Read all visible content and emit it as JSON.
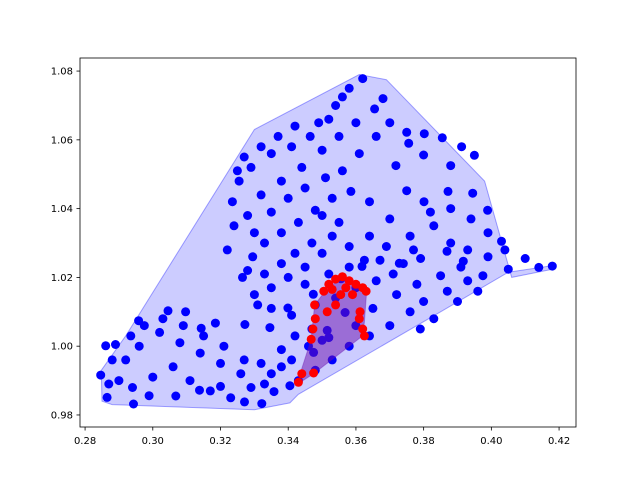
{
  "chart_data": {
    "type": "scatter",
    "title": "",
    "xlabel": "",
    "ylabel": "",
    "xlim": [
      0.2785,
      0.425
    ],
    "ylim": [
      0.9765,
      1.0838
    ],
    "x_ticks": [
      "0.28",
      "0.30",
      "0.32",
      "0.34",
      "0.36",
      "0.38",
      "0.40",
      "0.42"
    ],
    "x_tick_values": [
      0.28,
      0.3,
      0.32,
      0.34,
      0.36,
      0.38,
      0.4,
      0.42
    ],
    "y_ticks": [
      "0.98",
      "1.00",
      "1.02",
      "1.04",
      "1.06",
      "1.08"
    ],
    "y_tick_values": [
      0.98,
      1.0,
      1.02,
      1.04,
      1.06,
      1.08
    ],
    "grid": false,
    "legend": "none",
    "series": [
      {
        "color": "#0000ff",
        "hull_fill": "#0000ff",
        "hull_opacity": 0.2,
        "hull": [
          [
            0.285,
            0.984
          ],
          [
            0.288,
            0.983
          ],
          [
            0.33,
            0.9815
          ],
          [
            0.3405,
            0.9835
          ],
          [
            0.343,
            0.986
          ],
          [
            0.385,
            1.01
          ],
          [
            0.405,
            1.0215
          ],
          [
            0.4185,
            1.0235
          ],
          [
            0.4188,
            1.0225
          ],
          [
            0.406,
            1.02
          ],
          [
            0.398,
            1.048
          ],
          [
            0.369,
            1.0775
          ],
          [
            0.361,
            1.079
          ],
          [
            0.33,
            1.063
          ],
          [
            0.292,
            1.003
          ],
          [
            0.2848,
            0.993
          ]
        ],
        "points": [
          [
            0.3568,
            1.0098
          ],
          [
            0.3515,
            1.0046
          ],
          [
            0.35,
            1.0017
          ],
          [
            0.3475,
            0.9982
          ],
          [
            0.3405,
            0.9885
          ],
          [
            0.3358,
            0.9868
          ],
          [
            0.3322,
            0.9833
          ],
          [
            0.3271,
            0.9838
          ],
          [
            0.32,
            0.9883
          ],
          [
            0.3138,
            0.9872
          ],
          [
            0.3068,
            0.9855
          ],
          [
            0.2989,
            0.9856
          ],
          [
            0.2943,
            0.9832
          ],
          [
            0.2865,
            0.9851
          ],
          [
            0.2846,
            0.9916
          ],
          [
            0.2861,
            1.0001
          ],
          [
            0.289,
            1.0005
          ],
          [
            0.2958,
            1.0074
          ],
          [
            0.3045,
            1.0103
          ],
          [
            0.3097,
            1.01
          ],
          [
            0.3143,
            1.0052
          ],
          [
            0.3185,
            1.0067
          ],
          [
            0.3272,
            1.0063
          ],
          [
            0.3346,
            1.0054
          ],
          [
            0.3399,
            1.0111
          ],
          [
            0.3474,
            1.0151
          ],
          [
            0.3556,
            1.0196
          ],
          [
            0.3618,
            1.0232
          ],
          [
            0.3671,
            1.025
          ],
          [
            0.3728,
            1.0241
          ],
          [
            0.3791,
            1.0255
          ],
          [
            0.3869,
            1.0276
          ],
          [
            0.3917,
            1.0247
          ],
          [
            0.3975,
            1.0205
          ],
          [
            0.405,
            1.0224
          ],
          [
            0.414,
            1.0229
          ],
          [
            0.418,
            1.0233
          ],
          [
            0.41,
            1.0255
          ],
          [
            0.403,
            1.0305
          ],
          [
            0.3989,
            1.0395
          ],
          [
            0.3945,
            1.0445
          ],
          [
            0.3872,
            1.045
          ],
          [
            0.3801,
            1.042
          ],
          [
            0.375,
            1.0452
          ],
          [
            0.3718,
            1.0525
          ],
          [
            0.3756,
            1.059
          ],
          [
            0.3802,
            1.0618
          ],
          [
            0.3855,
            1.0606
          ],
          [
            0.3912,
            1.058
          ],
          [
            0.395,
            1.0555
          ],
          [
            0.388,
            1.0525
          ],
          [
            0.38,
            1.0556
          ],
          [
            0.375,
            1.0622
          ],
          [
            0.368,
            1.072
          ],
          [
            0.362,
            1.0778
          ],
          [
            0.356,
            1.0725
          ],
          [
            0.352,
            1.066
          ],
          [
            0.3465,
            1.061
          ],
          [
            0.341,
            1.058
          ],
          [
            0.335,
            1.056
          ],
          [
            0.329,
            1.052
          ],
          [
            0.3255,
            1.048
          ],
          [
            0.3235,
            1.042
          ],
          [
            0.324,
            1.035
          ],
          [
            0.322,
            1.028
          ],
          [
            0.3265,
            1.02
          ],
          [
            0.33,
            1.015
          ],
          [
            0.335,
            1.011
          ],
          [
            0.341,
            1.009
          ],
          [
            0.347,
            1.005
          ],
          [
            0.352,
            1.0025
          ],
          [
            0.36,
            1.006
          ],
          [
            0.365,
            1.011
          ],
          [
            0.372,
            1.015
          ],
          [
            0.378,
            1.018
          ],
          [
            0.385,
            1.0205
          ],
          [
            0.391,
            1.023
          ],
          [
            0.376,
            1.032
          ],
          [
            0.37,
            1.037
          ],
          [
            0.364,
            1.042
          ],
          [
            0.3585,
            1.045
          ],
          [
            0.353,
            1.043
          ],
          [
            0.348,
            1.0395
          ],
          [
            0.343,
            1.036
          ],
          [
            0.338,
            1.033
          ],
          [
            0.333,
            1.03
          ],
          [
            0.3295,
            1.026
          ],
          [
            0.328,
            1.022
          ],
          [
            0.333,
            1.021
          ],
          [
            0.338,
            1.024
          ],
          [
            0.342,
            1.027
          ],
          [
            0.347,
            1.03
          ],
          [
            0.353,
            1.032
          ],
          [
            0.358,
            1.029
          ],
          [
            0.3625,
            1.025
          ],
          [
            0.36,
            1.017
          ],
          [
            0.354,
            1.014
          ],
          [
            0.348,
            1.012
          ],
          [
            0.342,
            1.003
          ],
          [
            0.338,
            0.999
          ],
          [
            0.332,
            0.995
          ],
          [
            0.326,
            0.992
          ],
          [
            0.32,
            0.995
          ],
          [
            0.314,
            0.998
          ],
          [
            0.308,
            1.001
          ],
          [
            0.302,
            1.004
          ],
          [
            0.296,
            1.0
          ],
          [
            0.292,
            0.996
          ],
          [
            0.29,
            0.99
          ],
          [
            0.294,
            0.988
          ],
          [
            0.3,
            0.991
          ],
          [
            0.306,
            0.994
          ],
          [
            0.311,
            0.99
          ],
          [
            0.317,
            0.987
          ],
          [
            0.323,
            0.985
          ],
          [
            0.329,
            0.988
          ],
          [
            0.335,
            0.992
          ],
          [
            0.341,
            0.996
          ],
          [
            0.346,
            1.0
          ],
          [
            0.356,
            1.051
          ],
          [
            0.361,
            1.056
          ],
          [
            0.366,
            1.061
          ],
          [
            0.37,
            1.065
          ],
          [
            0.3655,
            1.069
          ],
          [
            0.36,
            1.065
          ],
          [
            0.355,
            1.061
          ],
          [
            0.35,
            1.057
          ],
          [
            0.344,
            1.052
          ],
          [
            0.338,
            1.048
          ],
          [
            0.332,
            1.044
          ],
          [
            0.328,
            1.038
          ],
          [
            0.33,
            1.033
          ],
          [
            0.335,
            1.039
          ],
          [
            0.34,
            1.043
          ],
          [
            0.345,
            1.046
          ],
          [
            0.351,
            1.049
          ],
          [
            0.383,
            1.035
          ],
          [
            0.388,
            1.03
          ],
          [
            0.393,
            1.028
          ],
          [
            0.399,
            1.026
          ],
          [
            0.404,
            1.028
          ],
          [
            0.399,
            1.033
          ],
          [
            0.394,
            1.037
          ],
          [
            0.388,
            1.04
          ],
          [
            0.382,
            1.039
          ],
          [
            0.377,
            1.028
          ],
          [
            0.371,
            1.021
          ],
          [
            0.366,
            1.019
          ],
          [
            0.376,
            1.01
          ],
          [
            0.37,
            1.006
          ],
          [
            0.364,
            1.003
          ],
          [
            0.358,
            1.0
          ],
          [
            0.353,
            0.996
          ],
          [
            0.348,
            0.993
          ],
          [
            0.343,
            0.99
          ],
          [
            0.338,
            0.994
          ],
          [
            0.333,
            0.989
          ],
          [
            0.327,
            0.996
          ],
          [
            0.321,
            1.0
          ],
          [
            0.315,
            1.003
          ],
          [
            0.309,
            1.006
          ],
          [
            0.303,
            1.008
          ],
          [
            0.2975,
            1.006
          ],
          [
            0.2935,
            1.003
          ],
          [
            0.288,
            0.996
          ],
          [
            0.287,
            0.989
          ],
          [
            0.342,
            1.064
          ],
          [
            0.337,
            1.061
          ],
          [
            0.332,
            1.058
          ],
          [
            0.327,
            1.055
          ],
          [
            0.325,
            1.051
          ],
          [
            0.358,
            1.075
          ],
          [
            0.354,
            1.07
          ],
          [
            0.349,
            1.065
          ],
          [
            0.35,
            1.038
          ],
          [
            0.355,
            1.036
          ],
          [
            0.35,
            1.027
          ],
          [
            0.345,
            1.023
          ],
          [
            0.34,
            1.02
          ],
          [
            0.335,
            1.017
          ],
          [
            0.331,
            1.012
          ],
          [
            0.345,
            1.018
          ],
          [
            0.352,
            1.021
          ],
          [
            0.358,
            1.023
          ],
          [
            0.364,
            1.032
          ],
          [
            0.369,
            1.029
          ],
          [
            0.374,
            1.024
          ],
          [
            0.38,
            1.013
          ],
          [
            0.387,
            1.016
          ],
          [
            0.393,
            1.019
          ],
          [
            0.396,
            1.016
          ],
          [
            0.39,
            1.013
          ],
          [
            0.383,
            1.008
          ],
          [
            0.379,
            1.005
          ]
        ]
      },
      {
        "color": "#ff0000",
        "hull_fill": "#6a0dad",
        "hull_opacity": 0.5,
        "hull": [
          [
            0.3428,
            0.989
          ],
          [
            0.3475,
            0.992
          ],
          [
            0.362,
            1.003
          ],
          [
            0.3625,
            1.007
          ],
          [
            0.3632,
            1.0165
          ],
          [
            0.36,
            1.0182
          ],
          [
            0.356,
            1.02
          ],
          [
            0.3515,
            1.0168
          ],
          [
            0.3478,
            1.012
          ],
          [
            0.3468,
            1.002
          ],
          [
            0.344,
            0.9935
          ]
        ],
        "points": [
          [
            0.343,
            0.9895
          ],
          [
            0.344,
            0.992
          ],
          [
            0.3475,
            0.9922
          ],
          [
            0.3468,
            1.002
          ],
          [
            0.3473,
            1.005
          ],
          [
            0.348,
            1.008
          ],
          [
            0.3478,
            1.012
          ],
          [
            0.3505,
            1.016
          ],
          [
            0.352,
            1.018
          ],
          [
            0.354,
            1.0195
          ],
          [
            0.356,
            1.0202
          ],
          [
            0.358,
            1.019
          ],
          [
            0.36,
            1.018
          ],
          [
            0.362,
            1.017
          ],
          [
            0.363,
            1.016
          ],
          [
            0.353,
            1.0165
          ],
          [
            0.3555,
            1.015
          ],
          [
            0.357,
            1.017
          ],
          [
            0.359,
            1.015
          ],
          [
            0.361,
            1.008
          ],
          [
            0.362,
            1.005
          ],
          [
            0.3625,
            1.003
          ],
          [
            0.3612,
            1.01
          ],
          [
            0.3515,
            1.01
          ],
          [
            0.354,
            1.012
          ]
        ]
      }
    ]
  }
}
